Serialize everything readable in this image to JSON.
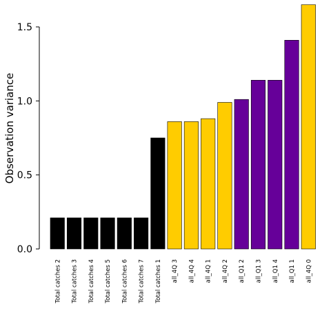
{
  "chart_data": {
    "type": "bar",
    "ylabel": "Observation variance",
    "ylim": [
      0,
      1.65
    ],
    "yticks": [
      0.0,
      0.5,
      1.0,
      1.5
    ],
    "ytick_labels": [
      "0.0",
      "0.5",
      "1.0",
      "1.5"
    ],
    "categories": [
      "Total catches 2",
      "Total catches 3",
      "Total catches 4",
      "Total catches 5",
      "Total catches 6",
      "Total catches 7",
      "Total catches 1",
      "all_4Q 3",
      "all_4Q 4",
      "all_4Q 1",
      "all_4Q 2",
      "all_Q1 2",
      "all_Q1 3",
      "all_Q1 4",
      "all_Q1 1",
      "all_4Q 0"
    ],
    "values": [
      0.21,
      0.21,
      0.21,
      0.21,
      0.21,
      0.21,
      0.75,
      0.86,
      0.86,
      0.88,
      0.99,
      1.01,
      1.14,
      1.14,
      1.41,
      1.65
    ],
    "bar_colors": [
      "#000000",
      "#000000",
      "#000000",
      "#000000",
      "#000000",
      "#000000",
      "#000000",
      "#FFCC00",
      "#FFCC00",
      "#FFCC00",
      "#FFCC00",
      "#660099",
      "#660099",
      "#660099",
      "#660099",
      "#FFCC00"
    ],
    "grid": false
  }
}
